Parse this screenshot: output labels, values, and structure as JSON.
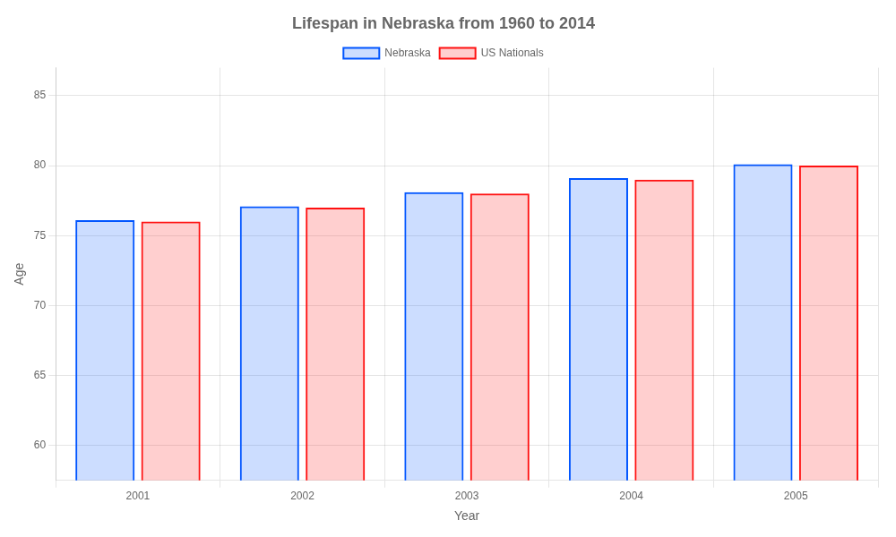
{
  "chart_data": {
    "type": "bar",
    "title": "Lifespan in Nebraska from 1960 to 2014",
    "x_label": "Year",
    "y_label": "Age",
    "categories": [
      "2001",
      "2002",
      "2003",
      "2004",
      "2005"
    ],
    "series": [
      {
        "name": "Nebraska",
        "color": "#0055ff",
        "values": [
          76.1,
          77.1,
          78.1,
          79.1,
          80.1
        ]
      },
      {
        "name": "US Nationals",
        "color": "#ff1111",
        "values": [
          76.0,
          77.0,
          78.0,
          79.0,
          80.0
        ]
      }
    ],
    "ylim": [
      57.5,
      87
    ],
    "yticks": [
      60,
      65,
      70,
      75,
      80,
      85
    ],
    "grid": true,
    "legend": "top"
  }
}
